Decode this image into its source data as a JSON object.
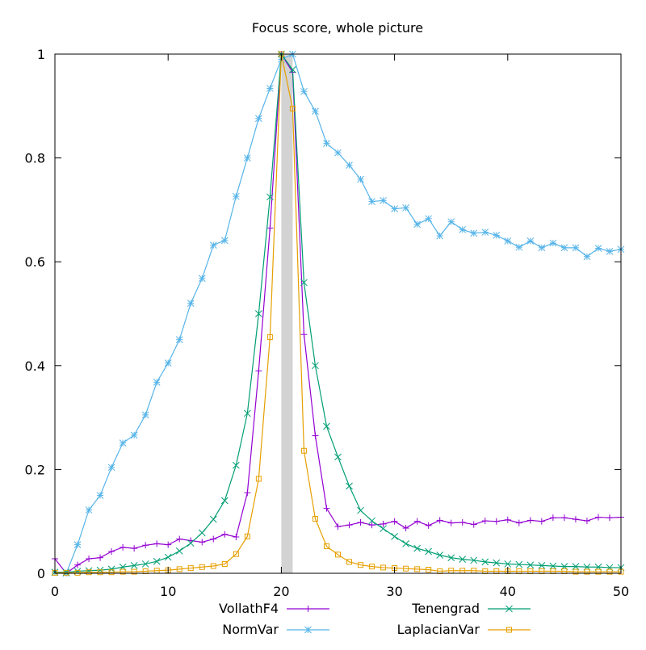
{
  "chart_data": {
    "type": "line",
    "title": "Focus score, whole picture",
    "xlabel": "",
    "ylabel": "",
    "xlim": [
      0,
      50
    ],
    "ylim": [
      0,
      1
    ],
    "x_ticks": [
      0,
      10,
      20,
      30,
      40,
      50
    ],
    "x_tick_labels": [
      "0",
      "10",
      "20",
      "30",
      "40",
      "50"
    ],
    "y_ticks": [
      0,
      0.2,
      0.4,
      0.6,
      0.8,
      1
    ],
    "y_tick_labels": [
      "0",
      "0.2",
      "0.4",
      "0.6",
      "0.8",
      "1"
    ],
    "grid": false,
    "legend_position": "bottom",
    "highlight_band": {
      "x_start": 20,
      "x_end": 21,
      "color": "#d3d3d3"
    },
    "x": [
      0,
      1,
      2,
      3,
      4,
      5,
      6,
      7,
      8,
      9,
      10,
      11,
      12,
      13,
      14,
      15,
      16,
      17,
      18,
      19,
      20,
      21,
      22,
      23,
      24,
      25,
      26,
      27,
      28,
      29,
      30,
      31,
      32,
      33,
      34,
      35,
      36,
      37,
      38,
      39,
      40,
      41,
      42,
      43,
      44,
      45,
      46,
      47,
      48,
      49,
      50
    ],
    "series": [
      {
        "name": "VollathF4",
        "color": "#9400d3",
        "marker": "plus",
        "values": [
          0.028,
          0.0,
          0.016,
          0.028,
          0.03,
          0.042,
          0.05,
          0.048,
          0.054,
          0.057,
          0.055,
          0.066,
          0.063,
          0.06,
          0.066,
          0.075,
          0.07,
          0.155,
          0.39,
          0.665,
          1.0,
          0.965,
          0.46,
          0.265,
          0.125,
          0.09,
          0.093,
          0.098,
          0.093,
          0.095,
          0.1,
          0.087,
          0.1,
          0.092,
          0.102,
          0.097,
          0.098,
          0.094,
          0.101,
          0.1,
          0.103,
          0.097,
          0.102,
          0.1,
          0.107,
          0.107,
          0.104,
          0.101,
          0.108,
          0.107,
          0.108
        ]
      },
      {
        "name": "NormVar",
        "color": "#56b4e9",
        "marker": "star",
        "values": [
          0.002,
          0.0,
          0.055,
          0.122,
          0.15,
          0.204,
          0.251,
          0.266,
          0.305,
          0.368,
          0.405,
          0.45,
          0.52,
          0.568,
          0.632,
          0.641,
          0.726,
          0.8,
          0.876,
          0.934,
          0.99,
          1.0,
          0.928,
          0.89,
          0.828,
          0.81,
          0.786,
          0.759,
          0.716,
          0.718,
          0.702,
          0.704,
          0.672,
          0.683,
          0.65,
          0.677,
          0.662,
          0.655,
          0.657,
          0.651,
          0.64,
          0.628,
          0.64,
          0.627,
          0.636,
          0.627,
          0.627,
          0.61,
          0.626,
          0.62,
          0.624
        ]
      },
      {
        "name": "Tenengrad",
        "color": "#009e73",
        "marker": "cross",
        "values": [
          0.002,
          0.002,
          0.004,
          0.005,
          0.006,
          0.008,
          0.012,
          0.015,
          0.018,
          0.023,
          0.031,
          0.043,
          0.058,
          0.078,
          0.104,
          0.14,
          0.208,
          0.308,
          0.5,
          0.725,
          1.0,
          0.97,
          0.56,
          0.4,
          0.283,
          0.224,
          0.168,
          0.121,
          0.101,
          0.086,
          0.071,
          0.057,
          0.048,
          0.042,
          0.035,
          0.03,
          0.027,
          0.025,
          0.022,
          0.02,
          0.018,
          0.017,
          0.016,
          0.015,
          0.014,
          0.013,
          0.013,
          0.012,
          0.012,
          0.011,
          0.011
        ]
      },
      {
        "name": "LaplacianVar",
        "color": "#e69f00",
        "marker": "square",
        "values": [
          0.001,
          0.001,
          0.001,
          0.002,
          0.002,
          0.002,
          0.003,
          0.003,
          0.004,
          0.005,
          0.006,
          0.008,
          0.01,
          0.012,
          0.014,
          0.018,
          0.037,
          0.071,
          0.182,
          0.455,
          1.0,
          0.895,
          0.236,
          0.105,
          0.052,
          0.036,
          0.022,
          0.016,
          0.013,
          0.011,
          0.01,
          0.009,
          0.008,
          0.007,
          0.004,
          0.005,
          0.005,
          0.005,
          0.004,
          0.004,
          0.004,
          0.004,
          0.004,
          0.004,
          0.004,
          0.004,
          0.003,
          0.003,
          0.003,
          0.003,
          0.003
        ]
      }
    ]
  }
}
